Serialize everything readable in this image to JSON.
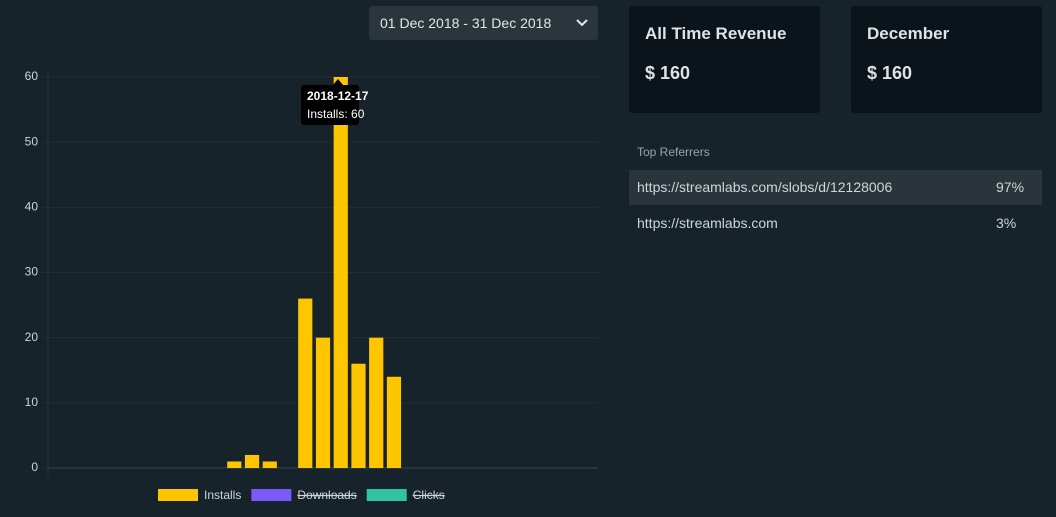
{
  "date_range": "01 Dec 2018 - 31 Dec 2018",
  "chart_data": {
    "type": "bar",
    "categories": [
      null,
      null,
      null,
      null,
      null,
      null,
      null,
      null,
      null,
      null,
      null,
      null,
      null,
      null,
      null,
      null,
      null,
      null,
      null,
      null,
      null,
      null,
      null,
      null,
      null,
      null,
      null,
      null,
      null,
      null,
      null
    ],
    "series": [
      {
        "name": "Installs",
        "color": "#ffc600",
        "values": [
          0,
          0,
          0,
          0,
          0,
          0,
          0,
          0,
          0,
          0,
          1,
          2,
          1,
          0,
          26,
          20,
          60,
          16,
          20,
          14,
          0,
          0,
          0,
          0,
          0,
          0,
          0,
          0,
          0,
          0,
          0
        ]
      },
      {
        "name": "Downloads",
        "color": "#7a5af8",
        "hidden": true
      },
      {
        "name": "Clicks",
        "color": "#31c3a2",
        "hidden": true
      }
    ],
    "ylim": [
      0,
      60
    ],
    "yticks": [
      0,
      10,
      20,
      30,
      40,
      50,
      60
    ],
    "grid": true,
    "tooltip": {
      "title": "2018-12-17",
      "label": "Installs: 60"
    }
  },
  "cards": [
    {
      "title": "All Time Revenue",
      "value": "$ 160"
    },
    {
      "title": "December",
      "value": "$ 160"
    }
  ],
  "referrers": {
    "title": "Top Referrers",
    "rows": [
      {
        "url": "https://streamlabs.com/slobs/d/12128006",
        "share": "97%"
      },
      {
        "url": "https://streamlabs.com",
        "share": "3%"
      }
    ]
  }
}
